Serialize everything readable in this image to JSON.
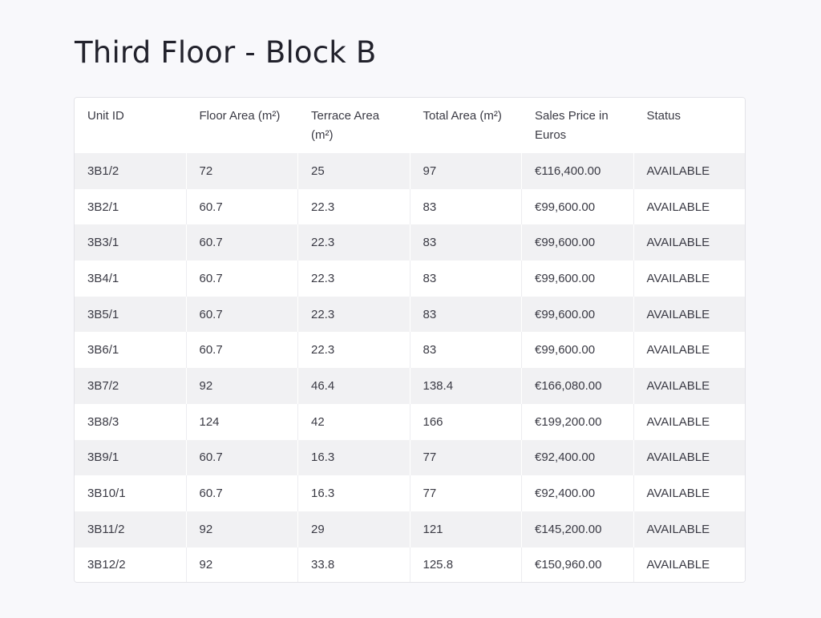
{
  "page": {
    "title": "Third Floor - Block B"
  },
  "table": {
    "headers": [
      "Unit ID",
      "Floor Area (m²)",
      "Terrace Area (m²)",
      "Total Area (m²)",
      "Sales Price in Euros",
      "Status"
    ],
    "rows": [
      [
        "3B1/2",
        "72",
        "25",
        "97",
        "€116,400.00",
        "AVAILABLE"
      ],
      [
        "3B2/1",
        "60.7",
        "22.3",
        "83",
        "€99,600.00",
        "AVAILABLE"
      ],
      [
        "3B3/1",
        "60.7",
        "22.3",
        "83",
        "€99,600.00",
        "AVAILABLE"
      ],
      [
        "3B4/1",
        "60.7",
        "22.3",
        "83",
        "€99,600.00",
        "AVAILABLE"
      ],
      [
        "3B5/1",
        "60.7",
        "22.3",
        "83",
        "€99,600.00",
        "AVAILABLE"
      ],
      [
        "3B6/1",
        "60.7",
        "22.3",
        "83",
        "€99,600.00",
        "AVAILABLE"
      ],
      [
        "3B7/2",
        "92",
        "46.4",
        "138.4",
        "€166,080.00",
        "AVAILABLE"
      ],
      [
        "3B8/3",
        "124",
        "42",
        "166",
        "€199,200.00",
        "AVAILABLE"
      ],
      [
        "3B9/1",
        "60.7",
        "16.3",
        "77",
        "€92,400.00",
        "AVAILABLE"
      ],
      [
        "3B10/1",
        "60.7",
        "16.3",
        "77",
        "€92,400.00",
        "AVAILABLE"
      ],
      [
        "3B11/2",
        "92",
        "29",
        "121",
        "€145,200.00",
        "AVAILABLE"
      ],
      [
        "3B12/2",
        "92",
        "33.8",
        "125.8",
        "€150,960.00",
        "AVAILABLE"
      ]
    ]
  },
  "colors": {
    "background": "#f8f8fb",
    "row_stripe": "#f1f1f3",
    "card": "#ffffff",
    "text": "#3a3a44"
  }
}
